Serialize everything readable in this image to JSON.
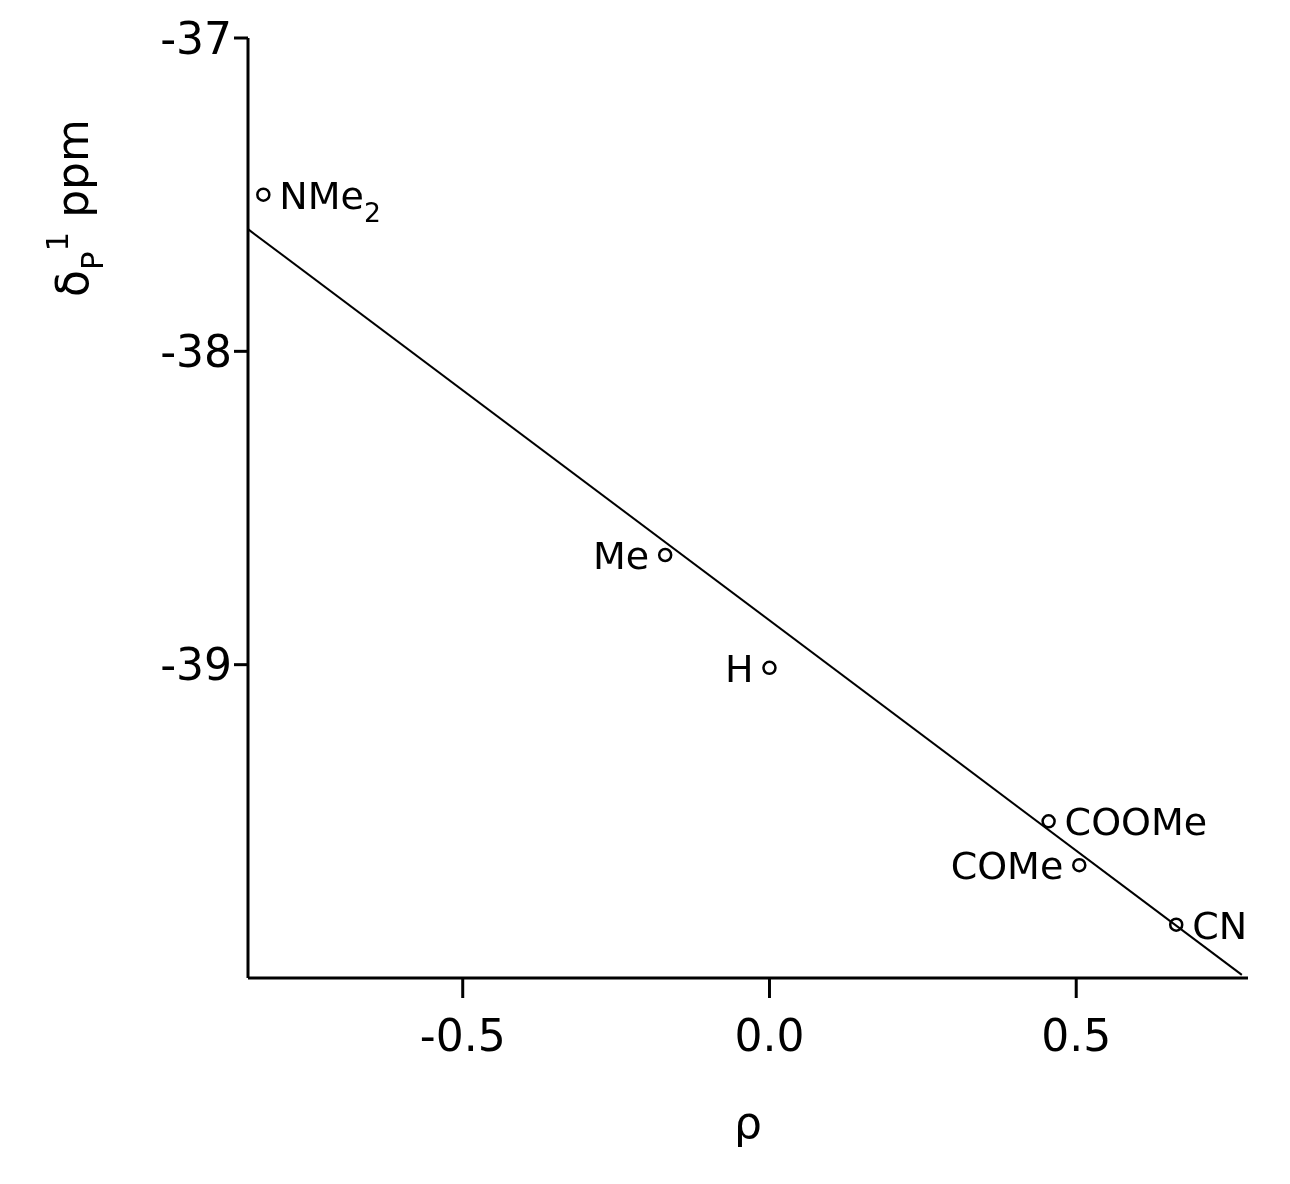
{
  "chart_data": {
    "type": "scatter",
    "xlabel": "ρ",
    "ylabel": "δ$_{P}$$^{1}$ ppm",
    "xlim": [
      -0.85,
      0.78
    ],
    "ylim": [
      -40,
      -37
    ],
    "xticks": [
      -0.5,
      {
        "value": 0,
        "label": "0.0"
      },
      0.5
    ],
    "yticks": [
      -37,
      -38,
      -39
    ],
    "grid": false,
    "legend": false,
    "series": [
      {
        "marker": "circle",
        "color": "#000000",
        "x": [
          -0.825,
          -0.17,
          0.0,
          0.455,
          0.505,
          0.663
        ],
        "values": [
          -37.5,
          -38.65,
          -39.01,
          -39.5,
          -39.64,
          -39.83
        ]
      },
      {
        "type": "line",
        "color": "#000000",
        "line_style": "solid",
        "x": [
          -0.85,
          0.77
        ],
        "values": [
          -37.61,
          -39.99
        ]
      }
    ],
    "annotations": [
      {
        "text": "NMe$_{2}$",
        "x": -0.825,
        "y": -37.5
      },
      {
        "text": "Me",
        "x": -0.17,
        "y": -38.65
      },
      {
        "text": "H",
        "x": 0.0,
        "y": -39.01
      },
      {
        "text": "COOMe",
        "x": 0.455,
        "y": -39.5
      },
      {
        "text": "COMe",
        "x": 0.505,
        "y": -39.64
      },
      {
        "text": "CN",
        "x": 0.663,
        "y": -39.83
      }
    ]
  }
}
